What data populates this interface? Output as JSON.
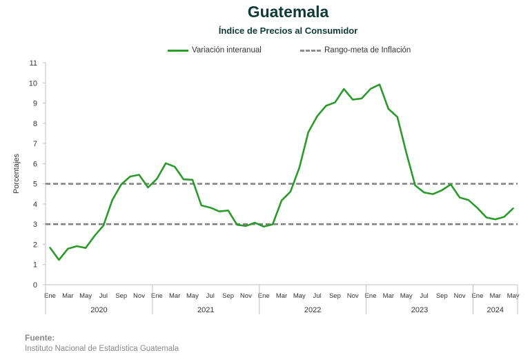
{
  "chart_data": {
    "type": "line",
    "title": "Guatemala",
    "subtitle": "Índice de Precios al Consumidor",
    "ylabel": "Porcentajes",
    "ylim": [
      0,
      11
    ],
    "yticks": [
      0,
      1,
      2,
      3,
      4,
      5,
      6,
      7,
      8,
      9,
      10,
      11
    ],
    "grid": false,
    "legend_position": "top",
    "month_tick_labels": [
      "Ene",
      "Mar",
      "May",
      "Jul",
      "Sep",
      "Nov"
    ],
    "final_tick_label": "May",
    "years": [
      "2020",
      "2021",
      "2022",
      "2023",
      "2024"
    ],
    "series": [
      {
        "name": "Variación interanual",
        "color": "#2a9a2a",
        "style": "solid",
        "values": [
          1.83,
          1.23,
          1.78,
          1.91,
          1.82,
          2.42,
          2.93,
          4.2,
          4.97,
          5.36,
          5.45,
          4.82,
          5.24,
          6.02,
          5.85,
          5.22,
          5.2,
          3.93,
          3.82,
          3.63,
          3.68,
          2.97,
          2.91,
          3.07,
          2.88,
          2.99,
          4.17,
          4.61,
          5.8,
          7.55,
          8.35,
          8.87,
          9.03,
          9.7,
          9.17,
          9.23,
          9.71,
          9.92,
          8.71,
          8.31,
          6.55,
          4.92,
          4.57,
          4.49,
          4.68,
          4.97,
          4.32,
          4.19,
          3.8,
          3.33,
          3.24,
          3.36,
          3.78
        ]
      },
      {
        "name": "Rango-meta de Inflación",
        "color": "#808080",
        "style": "dashed",
        "values": [
          3,
          5
        ]
      }
    ]
  },
  "footer": {
    "label": "Fuente:",
    "text": "Instituto Nacional de Estadística Guatemala"
  }
}
